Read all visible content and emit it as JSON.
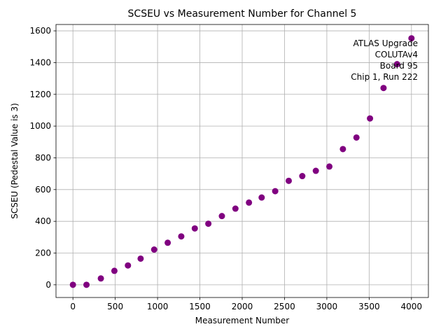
{
  "chart_data": {
    "type": "scatter",
    "title": "SCSEU vs Measurement Number for Channel 5",
    "xlabel": "Measurement Number",
    "ylabel": "SCSEU (Pedestal Value is 3)",
    "xlim": [
      -200,
      4200
    ],
    "ylim": [
      -80,
      1640
    ],
    "xticks": [
      0,
      500,
      1000,
      1500,
      2000,
      2500,
      3000,
      3500,
      4000
    ],
    "yticks": [
      0,
      200,
      400,
      600,
      800,
      1000,
      1200,
      1400,
      1600
    ],
    "grid": true,
    "marker_color": "#800080",
    "series": [
      {
        "name": "Channel 5",
        "x": [
          0,
          160,
          330,
          490,
          650,
          800,
          960,
          1120,
          1280,
          1440,
          1600,
          1760,
          1920,
          2080,
          2230,
          2390,
          2550,
          2710,
          2870,
          3030,
          3190,
          3350,
          3510,
          3670,
          3830,
          4000
        ],
        "y": [
          0,
          0,
          40,
          88,
          122,
          165,
          222,
          265,
          305,
          355,
          385,
          433,
          480,
          518,
          550,
          590,
          655,
          685,
          718,
          745,
          855,
          928,
          1048,
          1240,
          1390,
          1553
        ]
      }
    ],
    "annotation": {
      "lines": [
        "ATLAS Upgrade",
        "COLUTAv4",
        "Board 95",
        "Chip 1, Run 222"
      ],
      "placement": "top-right"
    }
  }
}
